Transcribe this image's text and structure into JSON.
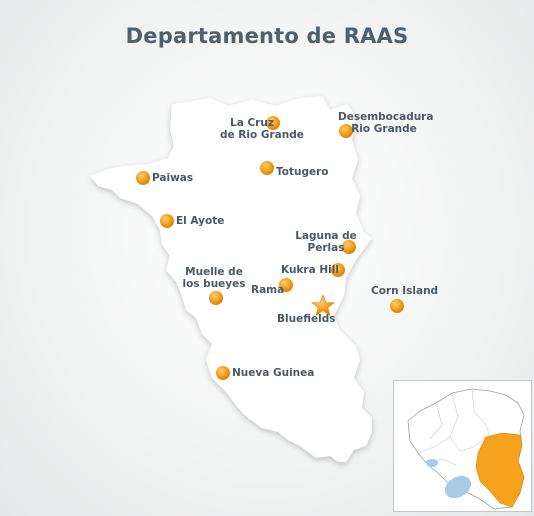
{
  "title": "Departamento de RAAS",
  "colors": {
    "region_fill": "#ffffff",
    "marker_orange": "#f5a21d",
    "marker_orange_dark": "#d9820c",
    "highlight_region": "#f5a21d",
    "water_blue": "#a9cbe8",
    "title_color": "#4f5f6b",
    "label_color": "#4a5866"
  },
  "places": [
    {
      "id": "la-cruz",
      "line1": "La Cruz",
      "line2": "de Rio Grande",
      "marker": "dot"
    },
    {
      "id": "desembocadura",
      "line1": "Desembocadura",
      "line2": "Rio Grande",
      "marker": "dot"
    },
    {
      "id": "paiwas",
      "line1": "Paiwas",
      "line2": "",
      "marker": "dot"
    },
    {
      "id": "totugero",
      "line1": "Totugero",
      "line2": "",
      "marker": "dot"
    },
    {
      "id": "el-ayote",
      "line1": "El Ayote",
      "line2": "",
      "marker": "dot"
    },
    {
      "id": "laguna",
      "line1": "Laguna de",
      "line2": "Perlas",
      "marker": "dot"
    },
    {
      "id": "muelle",
      "line1": "Muelle de",
      "line2": "los bueyes",
      "marker": "dot"
    },
    {
      "id": "kukra",
      "line1": "Kukra Hill",
      "line2": "",
      "marker": "dot"
    },
    {
      "id": "rama",
      "line1": "Rama",
      "line2": "",
      "marker": "dot"
    },
    {
      "id": "corn",
      "line1": "Corn Island",
      "line2": "",
      "marker": "dot"
    },
    {
      "id": "bluefields",
      "line1": "Bluefields",
      "line2": "",
      "marker": "star"
    },
    {
      "id": "nueva-guinea",
      "line1": "Nueva Guinea",
      "line2": "",
      "marker": "dot"
    }
  ],
  "inset_map": {
    "icon": "nicaragua-locator-map",
    "highlighted_region": "RAAS"
  }
}
